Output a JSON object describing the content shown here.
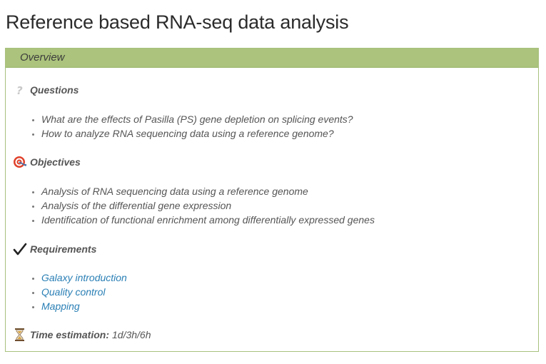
{
  "page": {
    "title": "Reference based RNA-seq data analysis"
  },
  "overview": {
    "header": "Overview",
    "questions": {
      "heading": "Questions",
      "icon": "question-icon",
      "items": [
        "What are the effects of Pasilla (PS) gene depletion on splicing events?",
        "How to analyze RNA sequencing data using a reference genome?"
      ]
    },
    "objectives": {
      "heading": "Objectives",
      "icon": "target-icon",
      "items": [
        "Analysis of RNA sequencing data using a reference genome",
        "Analysis of the differential gene expression",
        "Identification of functional enrichment among differentially expressed genes"
      ]
    },
    "requirements": {
      "heading": "Requirements",
      "icon": "checkmark-icon",
      "items": [
        "Galaxy introduction",
        "Quality control",
        "Mapping"
      ]
    },
    "time": {
      "icon": "hourglass-icon",
      "label": "Time estimation:",
      "value": "1d/3h/6h"
    }
  },
  "colors": {
    "header_bg": "#abc37c",
    "border": "#a8c07e",
    "link": "#2a7fb5"
  }
}
